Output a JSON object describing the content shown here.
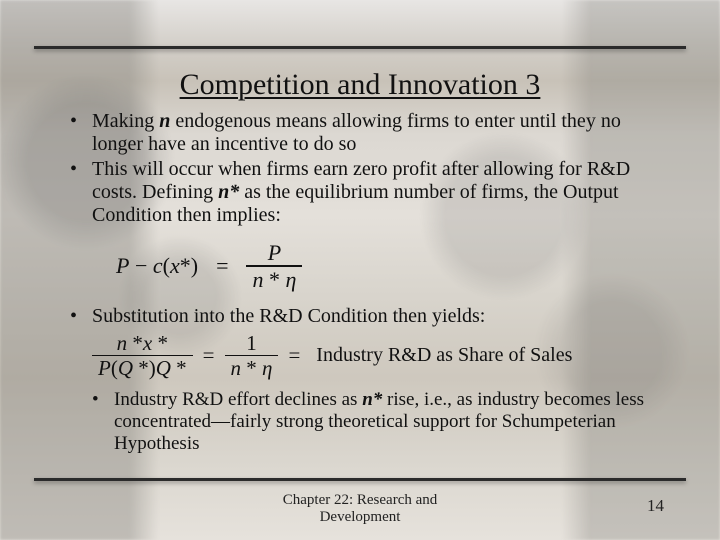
{
  "colors": {
    "text": "#111111",
    "rule": "#2b2b2b",
    "bg_base": "#e4e0da"
  },
  "typography": {
    "family": "Times New Roman",
    "title_pt": 30,
    "body_pt": 20,
    "sub_bullet_pt": 19,
    "footer_pt": 15,
    "pagenum_pt": 17
  },
  "title": {
    "text": "Competition and Innovation 3",
    "underlined": true
  },
  "bullets": [
    {
      "level": 1,
      "runs": [
        {
          "t": "Making "
        },
        {
          "t": "n",
          "style": "bi"
        },
        {
          "t": " endogenous means allowing firms to enter until they no longer have an incentive to do so"
        }
      ]
    },
    {
      "level": 1,
      "runs": [
        {
          "t": "This will occur when firms earn zero profit after allowing for R&D costs.  Defining "
        },
        {
          "t": "n*",
          "style": "bi"
        },
        {
          "t": " as the equilibrium number of firms, the Output Condition then implies:"
        }
      ]
    }
  ],
  "equation1": {
    "lhs_P": "P",
    "lhs_minus": "−",
    "lhs_c": "c",
    "lhs_paren_open": "(",
    "lhs_x": "x",
    "lhs_star": "*",
    "lhs_paren_close": ")",
    "equals": "=",
    "rhs_num": "P",
    "rhs_den_n": "n",
    "rhs_den_star": "*",
    "rhs_den_eta": "η"
  },
  "bullet_sub": {
    "level": 1,
    "runs": [
      {
        "t": "Substitution into the R&D Condition then yields:"
      }
    ]
  },
  "equation2": {
    "lnum_n": "n",
    "lnum_star1": "*",
    "lnum_x": "x",
    "lnum_star2": "*",
    "lden_P": "P",
    "lden_paren_open": "(",
    "lden_Q": "Q",
    "lden_star": "*",
    "lden_paren_close": ")",
    "lden_Q2": "Q",
    "lden_star2": "*",
    "equals": "=",
    "rnum_1": "1",
    "rden_n": "n",
    "rden_star": "*",
    "rden_eta": "η",
    "trailing_eq": "=",
    "label": "Industry R&D as Share of Sales"
  },
  "bullet_last": {
    "level": 2,
    "runs": [
      {
        "t": "Industry R&D effort declines as "
      },
      {
        "t": "n*",
        "style": "bi"
      },
      {
        "t": " rise, i.e., as industry becomes less concentrated—fairly strong theoretical support for Schumpeterian Hypothesis"
      }
    ]
  },
  "footer": {
    "line1": "Chapter 22: Research and",
    "line2": "Development"
  },
  "page_number": "14"
}
